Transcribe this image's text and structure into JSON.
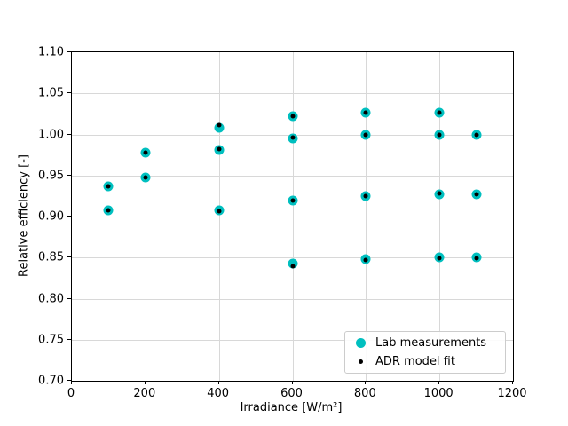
{
  "chart_data": {
    "type": "scatter",
    "title": "",
    "xlabel": "Irradiance [W/m²]",
    "ylabel": "Relative efficiency [-]",
    "xlim": [
      0,
      1200
    ],
    "ylim": [
      0.7,
      1.1
    ],
    "xticks": [
      0,
      200,
      400,
      600,
      800,
      1000,
      1200
    ],
    "yticks": [
      0.7,
      0.75,
      0.8,
      0.85,
      0.9,
      0.95,
      1.0,
      1.05,
      1.1
    ],
    "grid": true,
    "legend_position": "lower right",
    "series": [
      {
        "name": "Lab measurements",
        "color": "#00bfbf",
        "marker": "circle",
        "marker_size": 11,
        "points": [
          [
            100,
            0.937
          ],
          [
            100,
            0.908
          ],
          [
            200,
            0.978
          ],
          [
            200,
            0.948
          ],
          [
            400,
            1.008
          ],
          [
            400,
            0.981
          ],
          [
            400,
            0.908
          ],
          [
            600,
            1.022
          ],
          [
            600,
            0.995
          ],
          [
            600,
            0.92
          ],
          [
            600,
            0.843
          ],
          [
            800,
            1.027
          ],
          [
            800,
            0.999
          ],
          [
            800,
            0.925
          ],
          [
            800,
            0.848
          ],
          [
            1000,
            1.027
          ],
          [
            1000,
            1.0
          ],
          [
            1000,
            0.927
          ],
          [
            1000,
            0.85
          ],
          [
            1100,
            0.999
          ],
          [
            1100,
            0.927
          ],
          [
            1100,
            0.85
          ]
        ]
      },
      {
        "name": "ADR model fit",
        "color": "#000000",
        "marker": "point",
        "marker_size": 5,
        "points": [
          [
            100,
            0.937
          ],
          [
            100,
            0.908
          ],
          [
            200,
            0.978
          ],
          [
            200,
            0.948
          ],
          [
            400,
            1.011
          ],
          [
            400,
            0.982
          ],
          [
            400,
            0.907
          ],
          [
            600,
            1.022
          ],
          [
            600,
            0.996
          ],
          [
            600,
            0.92
          ],
          [
            600,
            0.84
          ],
          [
            800,
            1.027
          ],
          [
            800,
            0.999
          ],
          [
            800,
            0.925
          ],
          [
            800,
            0.847
          ],
          [
            1000,
            1.027
          ],
          [
            1000,
            1.0
          ],
          [
            1000,
            0.928
          ],
          [
            1000,
            0.849
          ],
          [
            1100,
            0.999
          ],
          [
            1100,
            0.927
          ],
          [
            1100,
            0.849
          ]
        ]
      }
    ]
  },
  "legend": {
    "items": [
      {
        "label": "Lab measurements"
      },
      {
        "label": "ADR model fit"
      }
    ]
  }
}
